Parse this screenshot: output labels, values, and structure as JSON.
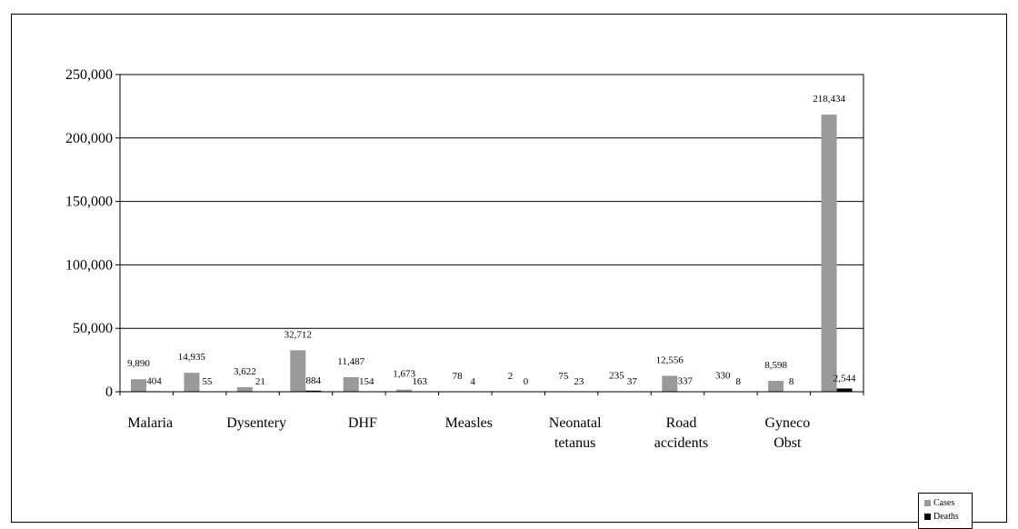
{
  "chart_data": {
    "type": "bar",
    "yticks": [
      "0",
      "50,000",
      "100,000",
      "150,000",
      "200,000",
      "250,000"
    ],
    "ylim": [
      0,
      250000
    ],
    "grid": true,
    "legend_position": "bottom-right",
    "category_labels": [
      {
        "lines": [
          "Malaria"
        ],
        "slot": 0
      },
      {
        "lines": [
          "Dysentery"
        ],
        "slot": 2
      },
      {
        "lines": [
          "DHF"
        ],
        "slot": 4
      },
      {
        "lines": [
          "Measles"
        ],
        "slot": 6
      },
      {
        "lines": [
          "Neonatal",
          "tetanus"
        ],
        "slot": 8
      },
      {
        "lines": [
          "Road",
          "accidents"
        ],
        "slot": 10
      },
      {
        "lines": [
          "Gyneco",
          "Obst"
        ],
        "slot": 12
      }
    ],
    "series": [
      {
        "name": "Cases",
        "color": "#999999",
        "values": [
          9890,
          14935,
          3622,
          32712,
          11487,
          1673,
          78,
          2,
          75,
          235,
          12556,
          330,
          8598,
          218434
        ],
        "labels": [
          "9,890",
          "14,935",
          "3,622",
          "32,712",
          "11,487",
          "1,673",
          "78",
          "2",
          "75",
          "235",
          "12,556",
          "330",
          "8,598",
          "218,434"
        ]
      },
      {
        "name": "Deaths",
        "color": "#000000",
        "values": [
          404,
          55,
          21,
          884,
          154,
          163,
          4,
          0,
          23,
          37,
          337,
          8,
          8,
          2544
        ],
        "labels": [
          "404",
          "55",
          "21",
          "884",
          "154",
          "163",
          "4",
          "0",
          "23",
          "37",
          "337",
          "8",
          "8",
          "2,544"
        ]
      }
    ]
  }
}
